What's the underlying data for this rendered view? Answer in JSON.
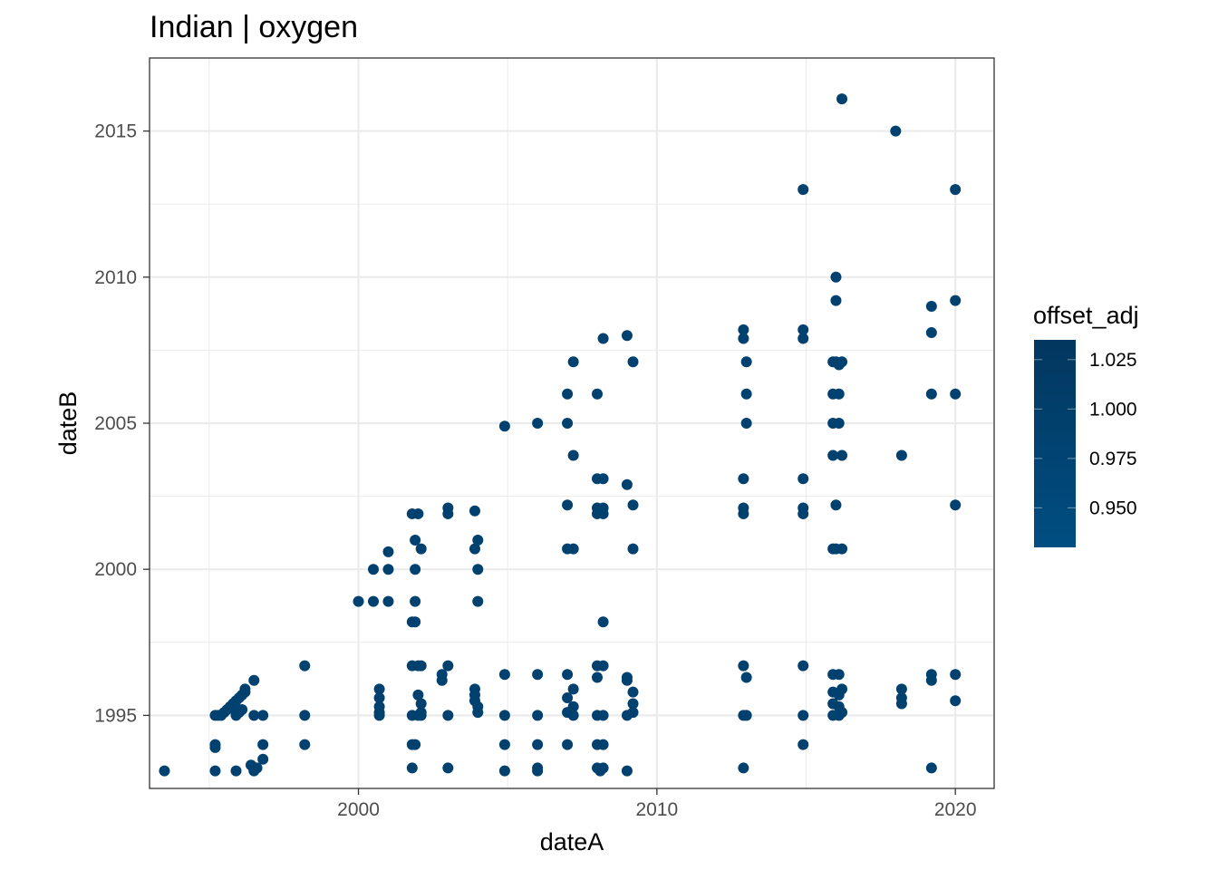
{
  "chart_data": {
    "type": "scatter",
    "title": "Indian | oxygen",
    "xlabel": "dateA",
    "ylabel": "dateB",
    "xlim": [
      1993,
      2021.3
    ],
    "ylim": [
      1992.5,
      2017.5
    ],
    "x_ticks": [
      2000,
      2010,
      2020
    ],
    "y_ticks": [
      1995,
      2000,
      2005,
      2010,
      2015
    ],
    "grid": true,
    "point_color": "#00416f",
    "legend": {
      "title": "offset_adj",
      "placement": "right",
      "labels": [
        "1.025",
        "1.000",
        "0.975",
        "0.950"
      ],
      "label_values": [
        1.025,
        1.0,
        0.975,
        0.95
      ],
      "range": [
        0.93,
        1.035
      ],
      "color_low": "#004e82",
      "color_high": "#02375f"
    },
    "points": [
      [
        1993.5,
        1993.1
      ],
      [
        1995.2,
        1993.1
      ],
      [
        1995.2,
        1993.9
      ],
      [
        1995.2,
        1994.0
      ],
      [
        1995.2,
        1995.0
      ],
      [
        1995.3,
        1995.0
      ],
      [
        1995.4,
        1995.0
      ],
      [
        1995.5,
        1995.1
      ],
      [
        1995.6,
        1995.2
      ],
      [
        1995.7,
        1995.3
      ],
      [
        1995.8,
        1995.4
      ],
      [
        1995.9,
        1995.5
      ],
      [
        1996.0,
        1995.6
      ],
      [
        1996.1,
        1995.7
      ],
      [
        1996.2,
        1995.8
      ],
      [
        1996.2,
        1995.9
      ],
      [
        1995.9,
        1995.0
      ],
      [
        1996.0,
        1995.1
      ],
      [
        1996.1,
        1995.2
      ],
      [
        1995.9,
        1993.1
      ],
      [
        1996.5,
        1993.1
      ],
      [
        1996.6,
        1993.2
      ],
      [
        1996.4,
        1993.3
      ],
      [
        1996.8,
        1993.5
      ],
      [
        1996.5,
        1995.0
      ],
      [
        1996.8,
        1995.0
      ],
      [
        1996.8,
        1994.0
      ],
      [
        1996.5,
        1996.2
      ],
      [
        1998.2,
        1996.7
      ],
      [
        1998.2,
        1995.0
      ],
      [
        1998.2,
        1994.0
      ],
      [
        2000.0,
        1998.9
      ],
      [
        2000.5,
        2000.0
      ],
      [
        2000.5,
        1998.9
      ],
      [
        2001.0,
        2000.6
      ],
      [
        2001.0,
        2000.0
      ],
      [
        2001.0,
        1998.9
      ],
      [
        2000.7,
        1995.9
      ],
      [
        2000.7,
        1995.6
      ],
      [
        2000.7,
        1995.3
      ],
      [
        2000.7,
        1995.1
      ],
      [
        2000.7,
        1995.0
      ],
      [
        2001.8,
        2001.9
      ],
      [
        2002.0,
        2001.9
      ],
      [
        2001.9,
        2001.0
      ],
      [
        2002.1,
        2000.7
      ],
      [
        2001.9,
        2000.0
      ],
      [
        2001.9,
        1998.9
      ],
      [
        2001.8,
        1998.2
      ],
      [
        2001.9,
        1998.2
      ],
      [
        2001.8,
        1996.7
      ],
      [
        2002.0,
        1996.7
      ],
      [
        2002.1,
        1996.7
      ],
      [
        2002.0,
        1995.7
      ],
      [
        2002.1,
        1995.4
      ],
      [
        2002.1,
        1995.1
      ],
      [
        2001.8,
        1995.0
      ],
      [
        2002.0,
        1995.0
      ],
      [
        2002.1,
        1995.0
      ],
      [
        2001.8,
        1994.0
      ],
      [
        2001.9,
        1994.0
      ],
      [
        2001.8,
        1993.2
      ],
      [
        2003.0,
        2002.1
      ],
      [
        2003.0,
        2001.9
      ],
      [
        2002.8,
        1996.4
      ],
      [
        2002.8,
        1996.2
      ],
      [
        2003.0,
        1996.7
      ],
      [
        2003.0,
        1995.0
      ],
      [
        2003.0,
        1993.2
      ],
      [
        2003.9,
        2002.0
      ],
      [
        2004.0,
        2001.0
      ],
      [
        2003.9,
        2000.7
      ],
      [
        2004.0,
        2000.0
      ],
      [
        2004.0,
        1998.9
      ],
      [
        2003.9,
        1995.9
      ],
      [
        2003.9,
        1995.7
      ],
      [
        2003.9,
        1995.5
      ],
      [
        2004.0,
        1995.3
      ],
      [
        2004.0,
        1995.1
      ],
      [
        2004.9,
        2004.9
      ],
      [
        2004.9,
        1996.4
      ],
      [
        2004.9,
        1995.0
      ],
      [
        2004.9,
        1994.0
      ],
      [
        2004.9,
        1993.1
      ],
      [
        2006.0,
        2005.0
      ],
      [
        2006.0,
        1996.4
      ],
      [
        2006.0,
        1995.0
      ],
      [
        2006.0,
        1994.0
      ],
      [
        2006.0,
        1993.2
      ],
      [
        2006.0,
        1993.1
      ],
      [
        2007.2,
        2007.1
      ],
      [
        2007.0,
        2006.0
      ],
      [
        2007.0,
        2005.0
      ],
      [
        2007.2,
        2003.9
      ],
      [
        2007.0,
        2002.2
      ],
      [
        2007.0,
        2000.7
      ],
      [
        2007.2,
        2000.7
      ],
      [
        2007.0,
        1996.4
      ],
      [
        2007.2,
        1995.9
      ],
      [
        2007.0,
        1995.6
      ],
      [
        2007.2,
        1995.3
      ],
      [
        2007.0,
        1995.1
      ],
      [
        2007.2,
        1995.0
      ],
      [
        2007.0,
        1994.0
      ],
      [
        2008.2,
        2007.9
      ],
      [
        2008.0,
        2006.0
      ],
      [
        2008.0,
        2003.1
      ],
      [
        2008.2,
        2003.1
      ],
      [
        2008.0,
        2002.1
      ],
      [
        2008.2,
        2002.1
      ],
      [
        2008.0,
        2001.9
      ],
      [
        2008.2,
        2001.9
      ],
      [
        2008.2,
        1998.2
      ],
      [
        2008.0,
        1996.7
      ],
      [
        2008.2,
        1996.7
      ],
      [
        2008.0,
        1996.3
      ],
      [
        2008.0,
        1995.0
      ],
      [
        2008.2,
        1995.0
      ],
      [
        2008.0,
        1994.0
      ],
      [
        2008.2,
        1994.0
      ],
      [
        2008.0,
        1993.2
      ],
      [
        2008.2,
        1993.2
      ],
      [
        2008.1,
        1993.1
      ],
      [
        2009.0,
        2008.0
      ],
      [
        2009.2,
        2007.1
      ],
      [
        2009.0,
        2002.9
      ],
      [
        2009.2,
        2002.2
      ],
      [
        2009.2,
        2000.7
      ],
      [
        2009.0,
        1996.3
      ],
      [
        2009.0,
        1996.2
      ],
      [
        2009.2,
        1995.8
      ],
      [
        2009.2,
        1995.4
      ],
      [
        2009.2,
        1995.1
      ],
      [
        2009.0,
        1995.0
      ],
      [
        2009.0,
        1993.1
      ],
      [
        2012.9,
        2008.2
      ],
      [
        2012.9,
        2007.9
      ],
      [
        2013.0,
        2007.1
      ],
      [
        2013.0,
        2006.0
      ],
      [
        2013.0,
        2005.0
      ],
      [
        2012.9,
        2003.1
      ],
      [
        2012.9,
        2002.1
      ],
      [
        2012.9,
        2001.9
      ],
      [
        2012.9,
        1996.7
      ],
      [
        2013.0,
        1996.3
      ],
      [
        2012.9,
        1995.0
      ],
      [
        2013.0,
        1995.0
      ],
      [
        2012.9,
        1993.2
      ],
      [
        2014.9,
        2013.0
      ],
      [
        2014.9,
        2008.2
      ],
      [
        2014.9,
        2007.9
      ],
      [
        2014.9,
        2003.1
      ],
      [
        2014.9,
        2002.1
      ],
      [
        2014.9,
        2001.9
      ],
      [
        2014.9,
        1996.7
      ],
      [
        2014.9,
        1995.0
      ],
      [
        2014.9,
        1994.0
      ],
      [
        2016.2,
        2016.1
      ],
      [
        2016.0,
        2010.0
      ],
      [
        2016.0,
        2009.2
      ],
      [
        2015.9,
        2007.1
      ],
      [
        2016.0,
        2007.1
      ],
      [
        2016.2,
        2007.1
      ],
      [
        2016.1,
        2007.0
      ],
      [
        2015.9,
        2006.0
      ],
      [
        2016.1,
        2006.0
      ],
      [
        2015.9,
        2005.0
      ],
      [
        2016.1,
        2005.0
      ],
      [
        2015.9,
        2003.9
      ],
      [
        2016.2,
        2003.9
      ],
      [
        2016.0,
        2002.2
      ],
      [
        2015.9,
        2000.7
      ],
      [
        2016.0,
        2000.7
      ],
      [
        2016.2,
        2000.7
      ],
      [
        2015.9,
        1996.4
      ],
      [
        2016.1,
        1996.4
      ],
      [
        2015.9,
        1995.8
      ],
      [
        2016.1,
        1995.7
      ],
      [
        2016.2,
        1995.9
      ],
      [
        2015.9,
        1995.4
      ],
      [
        2016.1,
        1995.3
      ],
      [
        2015.9,
        1995.0
      ],
      [
        2016.1,
        1995.0
      ],
      [
        2016.2,
        1995.1
      ],
      [
        2018.0,
        2015.0
      ],
      [
        2018.2,
        2003.9
      ],
      [
        2018.2,
        1995.9
      ],
      [
        2018.2,
        1995.6
      ],
      [
        2018.2,
        1995.4
      ],
      [
        2019.2,
        2009.0
      ],
      [
        2019.2,
        2008.1
      ],
      [
        2019.2,
        2006.0
      ],
      [
        2019.2,
        1996.4
      ],
      [
        2019.2,
        1996.2
      ],
      [
        2019.2,
        1993.2
      ],
      [
        2020.0,
        2013.0
      ],
      [
        2020.0,
        2009.2
      ],
      [
        2020.0,
        2006.0
      ],
      [
        2020.0,
        2002.2
      ],
      [
        2020.0,
        1996.4
      ],
      [
        2020.0,
        1995.5
      ]
    ]
  }
}
